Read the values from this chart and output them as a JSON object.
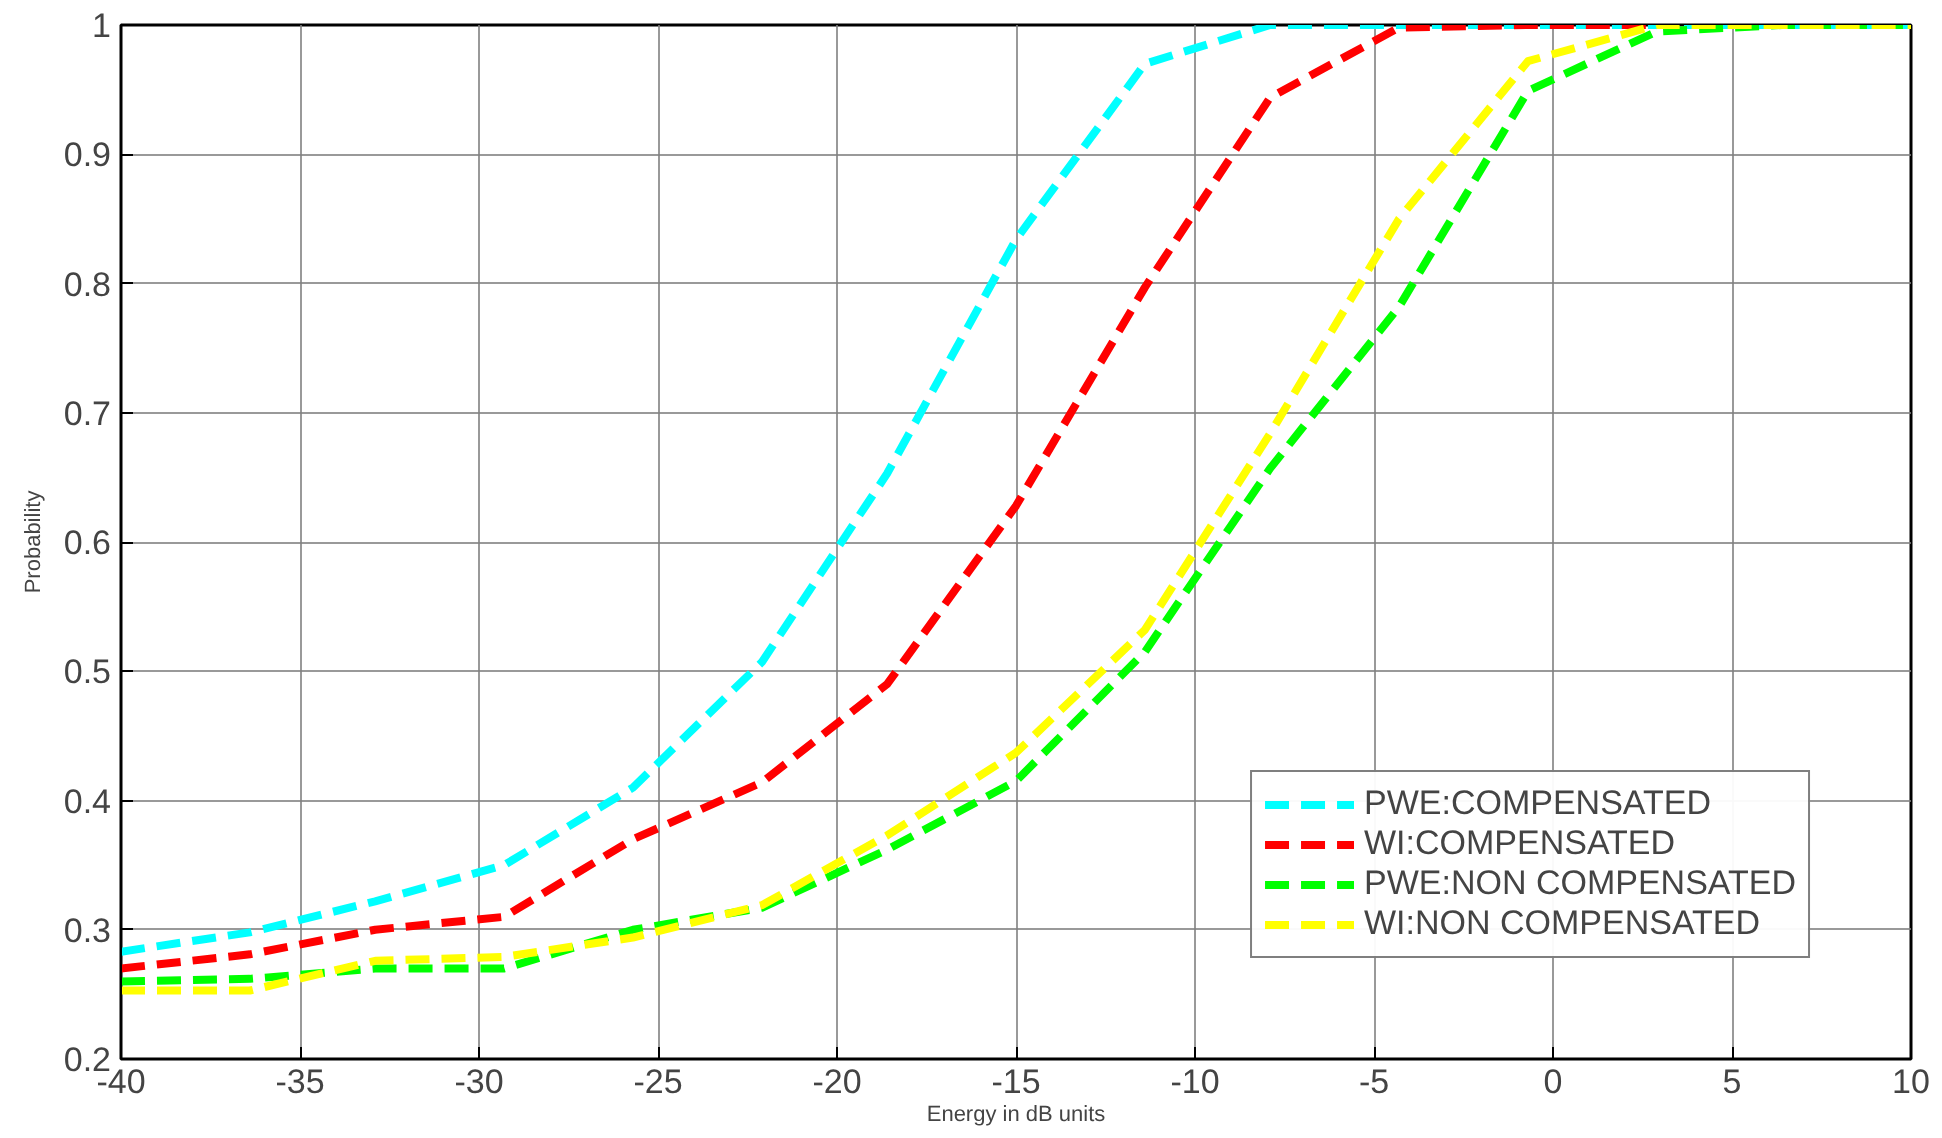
{
  "chart_data": {
    "type": "line",
    "xlabel": "Energy in dB units",
    "ylabel": "Probability",
    "x": [
      -40,
      -36.4,
      -32.9,
      -29.3,
      -25.7,
      -22.1,
      -18.6,
      -15,
      -11.4,
      -7.9,
      -4.3,
      -0.7,
      2.9,
      6.4,
      10
    ],
    "series": [
      {
        "name": "PWE:COMPENSATED",
        "color": "#00ffff",
        "values": [
          0.283,
          0.298,
          0.322,
          0.35,
          0.41,
          0.507,
          0.653,
          0.834,
          0.97,
          1.0,
          1.0,
          1.0,
          1.0,
          1.0,
          1.0
        ]
      },
      {
        "name": "WI:COMPENSATED",
        "color": "#ff0000",
        "values": [
          0.27,
          0.281,
          0.3,
          0.31,
          0.37,
          0.414,
          0.49,
          0.628,
          0.797,
          0.944,
          0.998,
          1.0,
          1.0,
          null,
          null
        ]
      },
      {
        "name": "PWE:NON COMPENSATED",
        "color": "#00ff00",
        "values": [
          0.26,
          0.262,
          0.27,
          0.27,
          0.3,
          0.317,
          0.362,
          0.415,
          0.515,
          0.657,
          0.782,
          0.949,
          0.995,
          1.0,
          1.0
        ]
      },
      {
        "name": "WI:NON COMPENSATED",
        "color": "#ffff00",
        "values": [
          0.253,
          0.253,
          0.276,
          0.279,
          0.294,
          0.319,
          0.373,
          0.437,
          0.532,
          0.684,
          0.85,
          0.972,
          1.0,
          1.0,
          1.0
        ]
      }
    ],
    "xlim": [
      -40,
      10
    ],
    "ylim": [
      0.2,
      1
    ],
    "xticks": [
      -40,
      -35,
      -30,
      -25,
      -20,
      -15,
      -10,
      -5,
      0,
      5,
      10
    ],
    "yticks": [
      0.2,
      0.3,
      0.4,
      0.5,
      0.6,
      0.7,
      0.8,
      0.9,
      1
    ],
    "grid": true,
    "legend": "bottom right",
    "line_style": "dashed",
    "marker": "none"
  }
}
